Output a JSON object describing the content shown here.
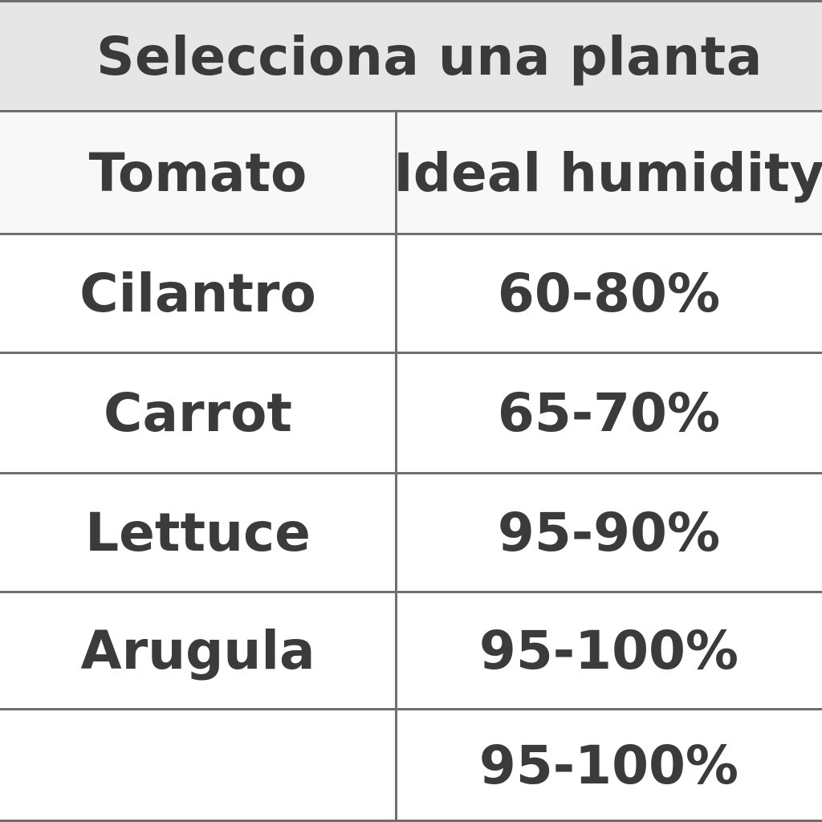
{
  "title": "Selecciona una planta",
  "table": {
    "header": {
      "col1": "Tomato",
      "col2": "Ideal humidity"
    },
    "rows": [
      {
        "plant": "Cilantro",
        "humidity": "60-80%"
      },
      {
        "plant": "Carrot",
        "humidity": "65-70%"
      },
      {
        "plant": "Lettuce",
        "humidity": "95-90%"
      },
      {
        "plant": "Arugula",
        "humidity": "95-100%"
      },
      {
        "plant": "",
        "humidity": "95-100%"
      }
    ]
  },
  "colors": {
    "title_background": "#e6e6e6",
    "header_background": "#f8f8f8",
    "border": "#6f6f6f",
    "text": "#3b3b3b"
  }
}
